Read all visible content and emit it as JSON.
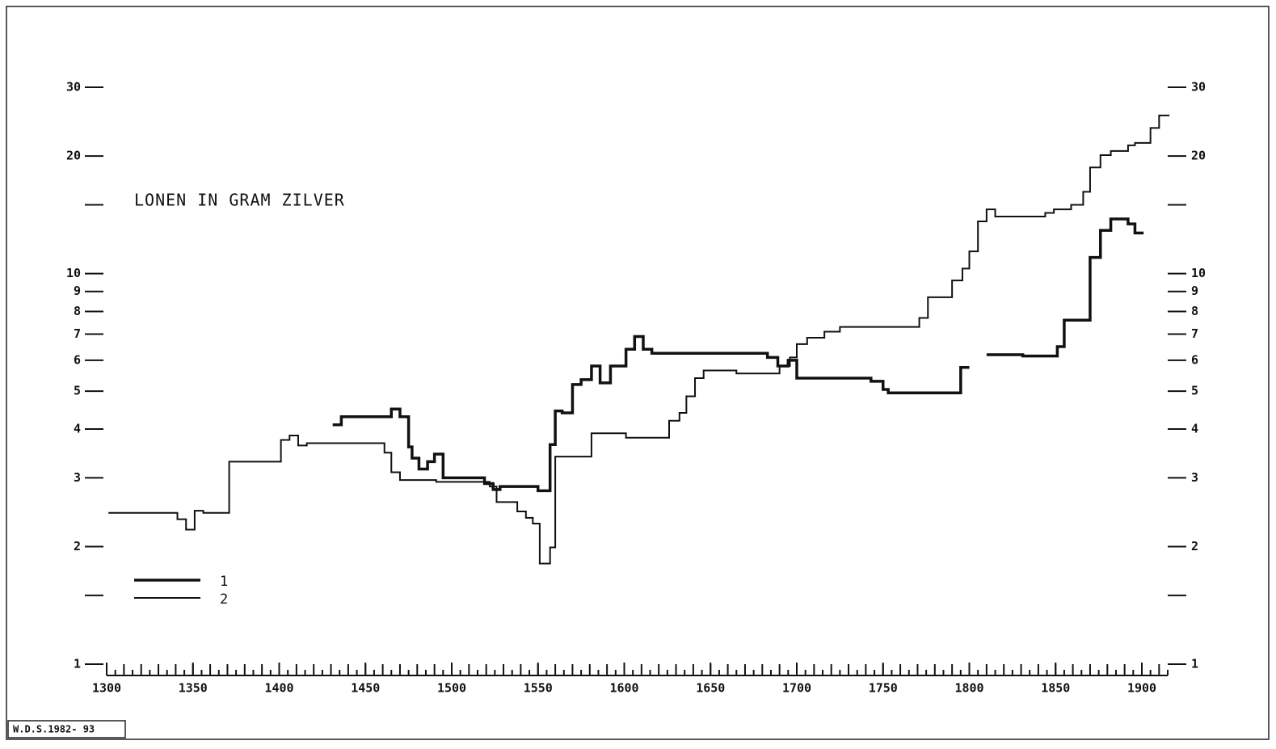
{
  "chart_data": {
    "type": "step",
    "title": "LONEN IN GRAM ZILVER",
    "footer": "W.D.S.1982- 93",
    "log_y": true,
    "ylim": [
      1,
      30
    ],
    "yticks": [
      1,
      2,
      3,
      4,
      5,
      6,
      7,
      8,
      9,
      10,
      20,
      30
    ],
    "minor_yticks": [
      1.5,
      15
    ],
    "xlim": [
      1300,
      1915
    ],
    "xticks": [
      1300,
      1350,
      1400,
      1450,
      1500,
      1550,
      1600,
      1650,
      1700,
      1750,
      1800,
      1850,
      1900
    ],
    "xtick_minor_step": 5,
    "legend": "lower left",
    "series": [
      {
        "name": "1",
        "color": "#111111",
        "width": 3.5,
        "x": [
          1431,
          1436,
          1465,
          1470,
          1475,
          1477,
          1481,
          1486,
          1490,
          1495,
          1519,
          1524,
          1528,
          1550,
          1557,
          1560,
          1564,
          1570,
          1575,
          1581,
          1586,
          1592,
          1601,
          1606,
          1611,
          1616,
          1683,
          1686,
          1689,
          1695,
          1700,
          1743,
          1750,
          1753,
          1795,
          1800,
          1805,
          1810,
          1831,
          1851,
          1855,
          1870,
          1876,
          1882,
          1892,
          1896,
          1901
        ],
        "values": [
          4.1,
          4.3,
          4.5,
          4.3,
          3.6,
          3.37,
          3.16,
          3.3,
          3.45,
          3.0,
          2.9,
          2.8,
          2.85,
          2.78,
          3.65,
          4.45,
          4.4,
          5.2,
          5.35,
          5.8,
          5.25,
          5.8,
          6.4,
          6.9,
          6.4,
          6.25,
          6.1,
          6.1,
          5.8,
          6.0,
          5.4,
          5.3,
          5.05,
          4.95,
          5.75,
          5.75,
          null,
          6.2,
          6.15,
          6.5,
          7.6,
          11,
          12.9,
          13.8,
          13.4,
          12.7,
          12.7
        ]
      },
      {
        "name": "2",
        "color": "#111111",
        "width": 2,
        "x": [
          1301,
          1341,
          1346,
          1351,
          1356,
          1371,
          1401,
          1406,
          1411,
          1416,
          1461,
          1465,
          1470,
          1491,
          1522,
          1526,
          1538,
          1543,
          1547,
          1551,
          1557,
          1560,
          1581,
          1601,
          1626,
          1632,
          1636,
          1641,
          1646,
          1665,
          1690,
          1696,
          1700,
          1706,
          1716,
          1725,
          1771,
          1776,
          1790,
          1796,
          1800,
          1805,
          1810,
          1815,
          1844,
          1849,
          1859,
          1866,
          1870,
          1876,
          1882,
          1892,
          1896,
          1905,
          1910,
          1916
        ],
        "values": [
          2.44,
          2.35,
          2.21,
          2.47,
          2.44,
          3.3,
          3.75,
          3.85,
          3.63,
          3.68,
          3.48,
          3.1,
          2.96,
          2.93,
          2.85,
          2.6,
          2.46,
          2.37,
          2.29,
          1.81,
          1.99,
          3.4,
          3.9,
          3.8,
          4.2,
          4.4,
          4.85,
          5.4,
          5.65,
          5.55,
          5.8,
          6.1,
          6.6,
          6.85,
          7.1,
          7.3,
          7.7,
          8.7,
          9.6,
          10.3,
          11.4,
          13.6,
          14.6,
          14.0,
          14.3,
          14.6,
          15.0,
          16.2,
          18.7,
          20.1,
          20.6,
          21.3,
          21.6,
          23.6,
          25.4,
          25.4
        ]
      }
    ]
  }
}
